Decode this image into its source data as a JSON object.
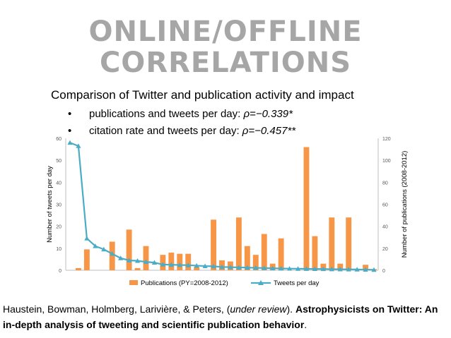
{
  "slide": {
    "title_line1": "ONLINE/OFFLINE",
    "title_line2": "CORRELATIONS",
    "subtitle": "Comparison of Twitter and publication activity and impact",
    "bullets": [
      {
        "text": "publications and tweets per day: ",
        "stat": "ρ=−0.339*"
      },
      {
        "text": "citation rate and tweets per day: ",
        "stat": "ρ=−0.457**"
      }
    ],
    "citation": {
      "authors": "Haustein, Bowman, Holmberg, Larivière, & Peters, (",
      "status": "under review",
      "after_status": "). ",
      "title": "Astrophysicists on Twitter: An in-depth analysis of tweeting and scientific publication behavior",
      "end": "."
    }
  },
  "chart_data": {
    "type": "bar",
    "y_left_label": "Number of tweets per day",
    "y_right_label": "Number of publications (2008-2012)",
    "y_left_ticks": [
      0,
      10,
      20,
      30,
      40,
      50,
      60
    ],
    "y_right_ticks": [
      0,
      20,
      40,
      60,
      80,
      100,
      120
    ],
    "ylim_left": [
      0,
      60
    ],
    "ylim_right": [
      0,
      120
    ],
    "legend_position": "bottom",
    "grid": false,
    "series": [
      {
        "name": "Publications (PY=2008-2012)",
        "type": "bar",
        "axis": "right",
        "color": "#f79646",
        "values": [
          0,
          2,
          19,
          0,
          0,
          26,
          0,
          37,
          2,
          22,
          0,
          14,
          16,
          15,
          15,
          3,
          0,
          46,
          9,
          8,
          48,
          22,
          14,
          33,
          6,
          29,
          0,
          0,
          112,
          31,
          6,
          48,
          6,
          48,
          0,
          5,
          1
        ]
      },
      {
        "name": "Tweets per day",
        "type": "line",
        "axis": "left",
        "color": "#4bacc6",
        "values": [
          58,
          56.5,
          14.5,
          11,
          9.5,
          7.5,
          5.5,
          4.5,
          4.3,
          3.8,
          3.5,
          2.6,
          2.5,
          2.4,
          2.3,
          2.1,
          1.9,
          1.8,
          1.5,
          1.4,
          1.3,
          1.2,
          1.1,
          1.0,
          0.9,
          0.8,
          0.75,
          0.7,
          0.65,
          0.6,
          0.55,
          0.5,
          0.45,
          0.4,
          0.35,
          0.3,
          0.2
        ]
      }
    ]
  }
}
